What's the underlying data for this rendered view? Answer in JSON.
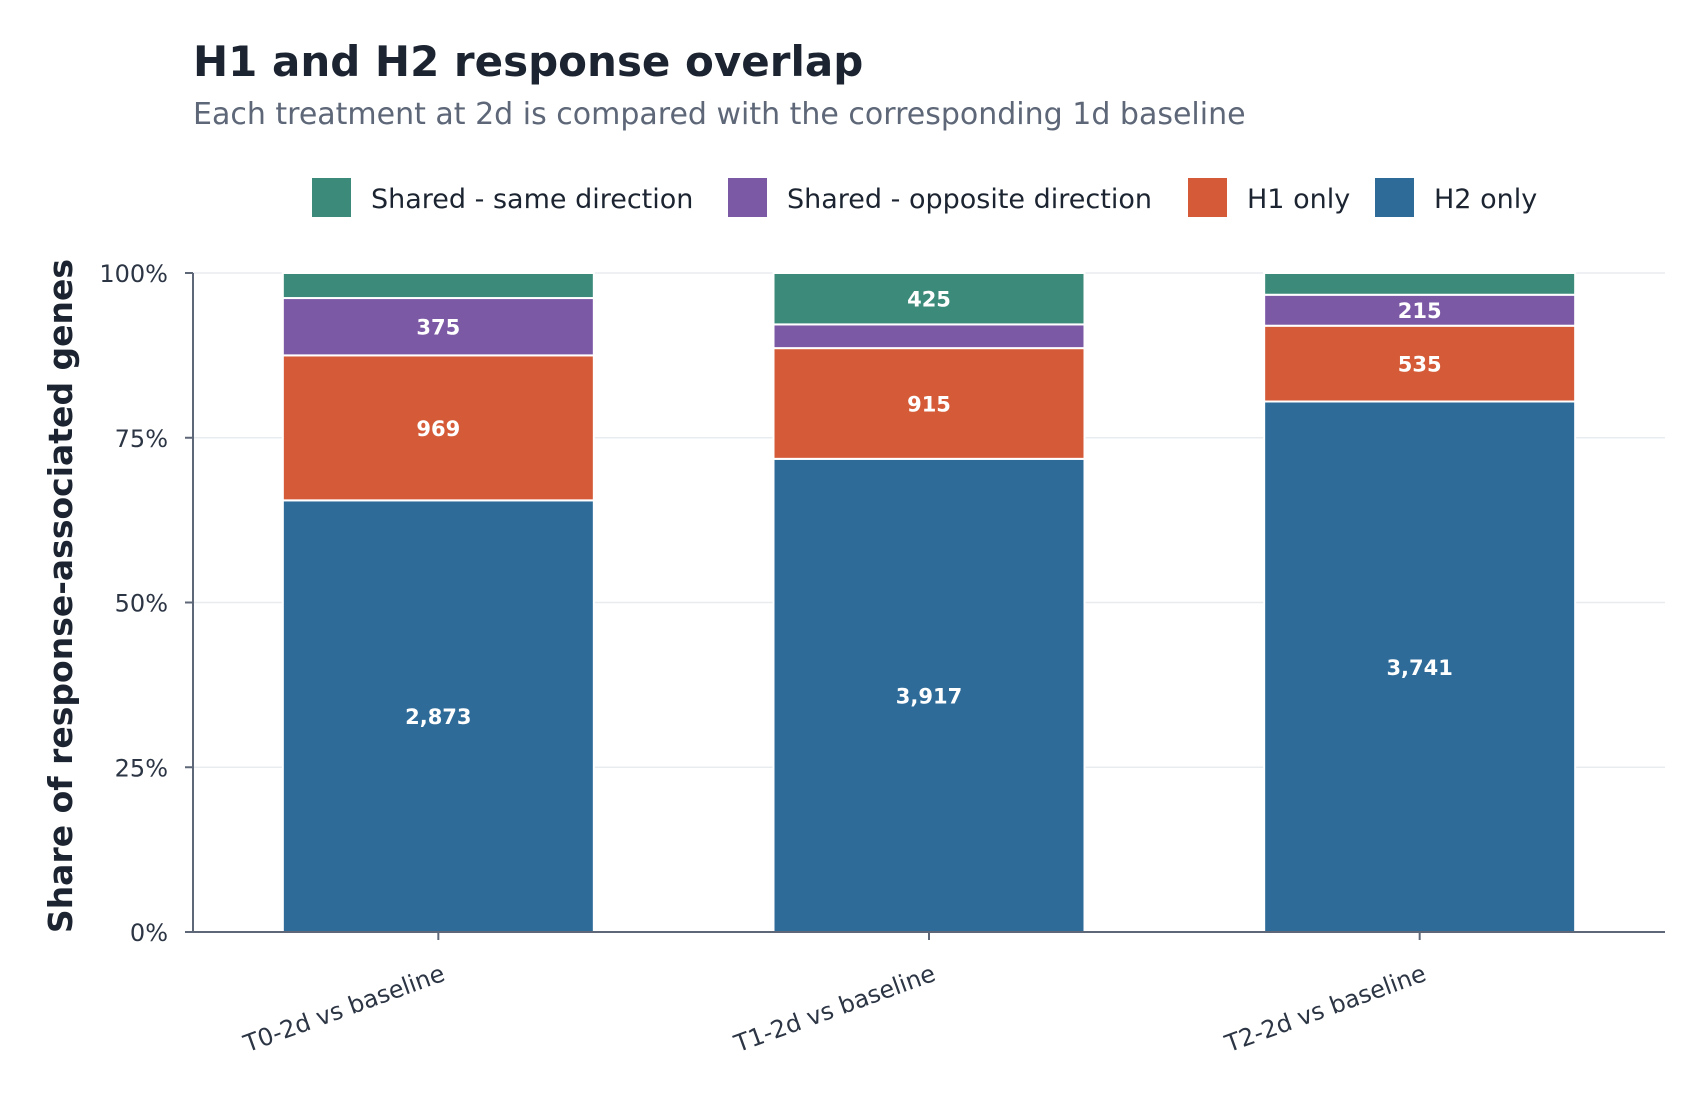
{
  "chart_data": {
    "type": "bar",
    "stacked": true,
    "normalized": true,
    "title": "H1 and H2 response overlap",
    "subtitle": "Each treatment at 2d is compared with the corresponding 1d baseline",
    "xlabel": "",
    "ylabel": "Share of response-associated genes",
    "ylim": [
      0,
      100
    ],
    "yticks": [
      0,
      25,
      50,
      75,
      100
    ],
    "ytick_labels": [
      "0%",
      "25%",
      "50%",
      "75%",
      "100%"
    ],
    "grid": true,
    "legend_position": "top",
    "categories": [
      "T0-2d vs baseline",
      "T1-2d vs baseline",
      "T2-2d vs baseline"
    ],
    "series": [
      {
        "name": "H2 only",
        "color": "#2e6b98",
        "values": [
          65.5,
          71.8,
          80.5
        ],
        "labels": [
          "2,873",
          "3,917",
          "3,741"
        ]
      },
      {
        "name": "H1 only",
        "color": "#d55b38",
        "values": [
          22.0,
          16.8,
          11.5
        ],
        "labels": [
          "969",
          "915",
          "535"
        ]
      },
      {
        "name": "Shared - opposite direction",
        "color": "#7c59a5",
        "values": [
          8.7,
          3.6,
          4.7
        ],
        "labels": [
          "375",
          "",
          "215"
        ]
      },
      {
        "name": "Shared - same direction",
        "color": "#3c8a7a",
        "values": [
          3.8,
          7.8,
          3.3
        ],
        "labels": [
          "",
          "425",
          ""
        ]
      }
    ],
    "legend_order": [
      "Shared - same direction",
      "Shared - opposite direction",
      "H1 only",
      "H2 only"
    ]
  }
}
